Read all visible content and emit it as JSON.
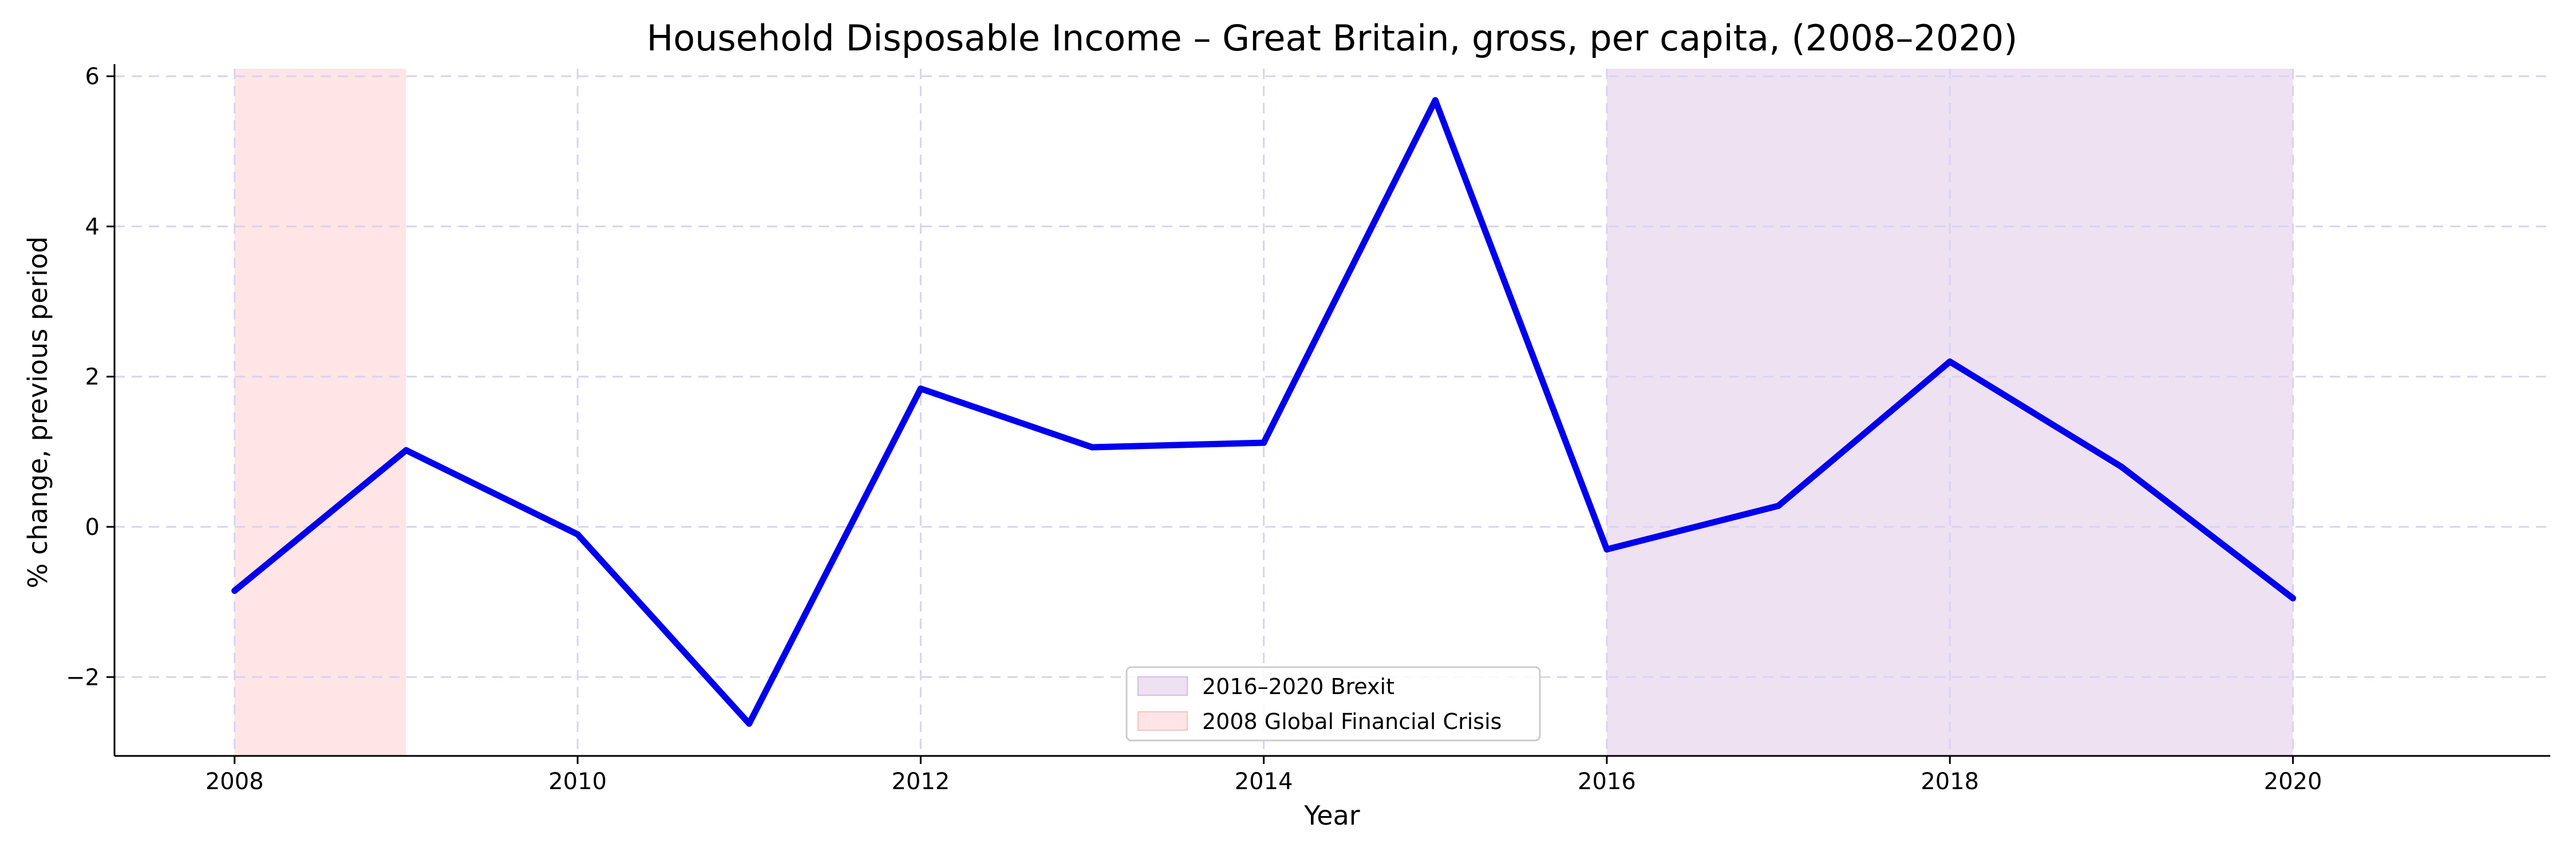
{
  "chart_data": {
    "type": "line",
    "title": "Household Disposable Income – Great Britain, gross, per capita, (2008–2020)",
    "xlabel": "Year",
    "ylabel": "% change, previous period",
    "x": [
      2008,
      2009,
      2010,
      2011,
      2012,
      2013,
      2014,
      2015,
      2016,
      2017,
      2018,
      2019,
      2020
    ],
    "series": [
      {
        "values": [
          -0.85,
          1.02,
          -0.1,
          -2.62,
          1.84,
          1.06,
          1.12,
          5.68,
          -0.3,
          0.28,
          2.2,
          0.8,
          -0.95
        ],
        "color": "#0000ee"
      }
    ],
    "xlim": [
      2007.3,
      2021.5
    ],
    "ylim": [
      -3.05,
      6.1
    ],
    "xticks": [
      2008,
      2010,
      2012,
      2014,
      2016,
      2018,
      2020
    ],
    "xtick_labels": [
      "2008",
      "2010",
      "2012",
      "2014",
      "2016",
      "2018",
      "2020"
    ],
    "yticks": [
      -2,
      0,
      2,
      4,
      6
    ],
    "ytick_labels": [
      "−2",
      "0",
      "2",
      "4",
      "6"
    ],
    "grid": true,
    "shaded_regions": [
      {
        "label": "2016–2020 Brexit",
        "x_start": 2016,
        "x_end": 2020,
        "color": "#e2cdea"
      },
      {
        "label": "2008 Global Financial Crisis",
        "x_start": 2008,
        "x_end": 2009,
        "color": "#ffd3d3"
      }
    ],
    "legend_position": "bottom-center"
  }
}
